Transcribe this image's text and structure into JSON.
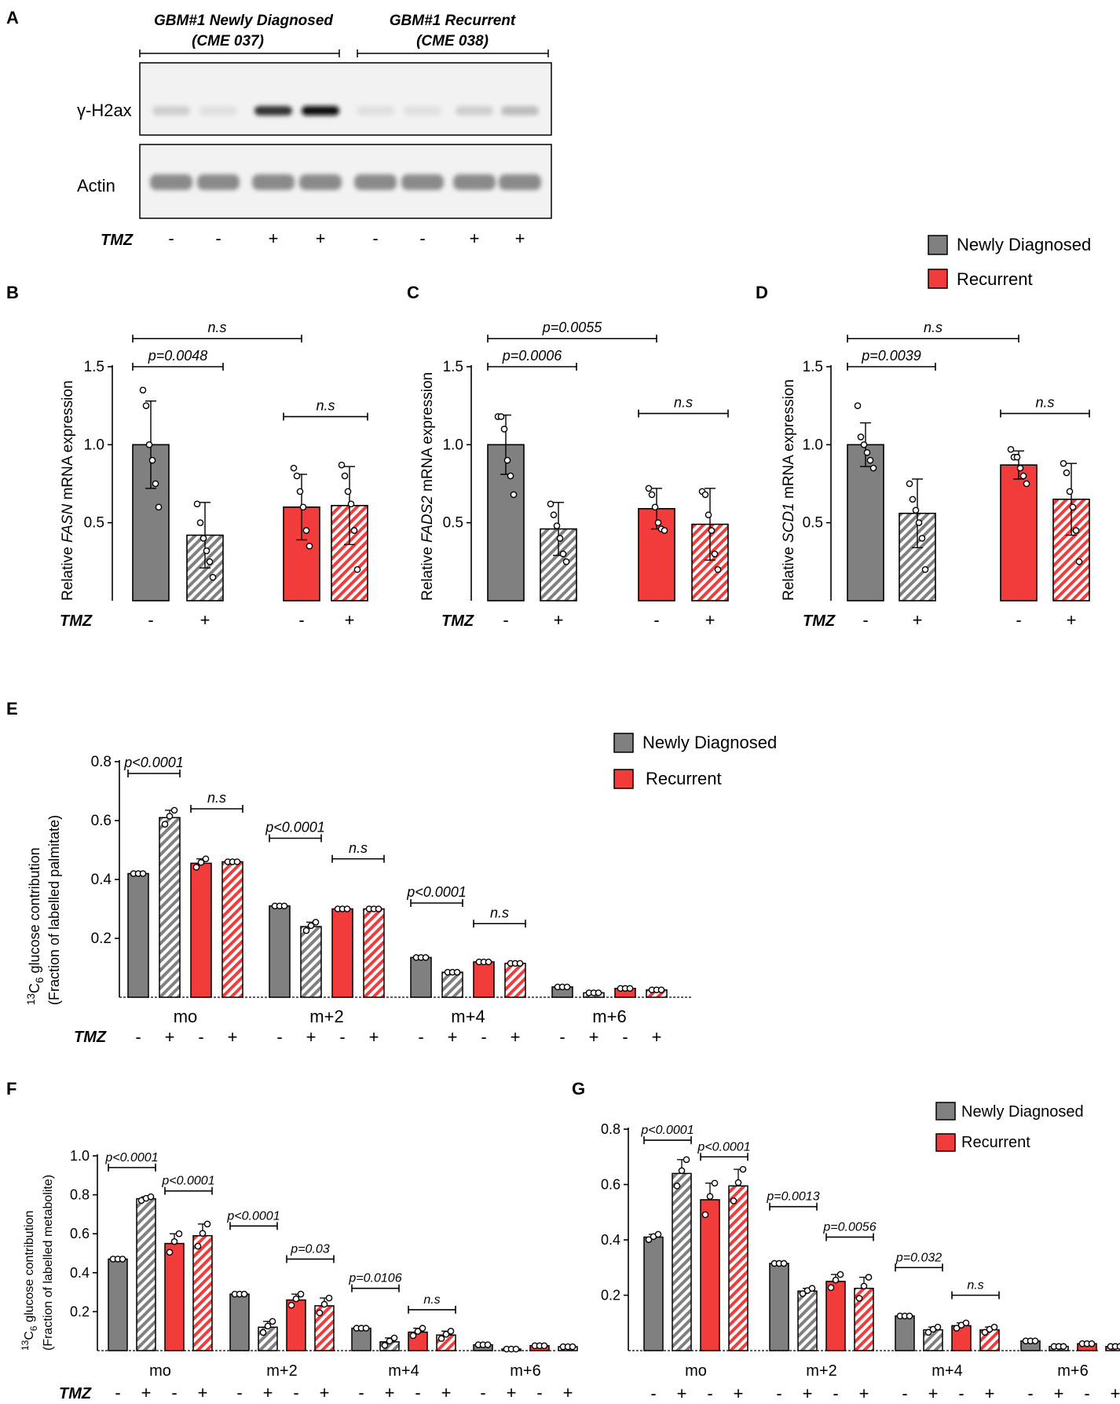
{
  "colors": {
    "newly": "#808080",
    "recurrent": "#f23c3c",
    "axis": "#000000",
    "blot_bg": "#f0f0f0"
  },
  "panel_a": {
    "letter": "A",
    "group1_line1": "GBM#1 Newly Diagnosed",
    "group1_line2": "(CME 037)",
    "group2_line1": "GBM#1 Recurrent",
    "group2_line2": "(CME 038)",
    "row1_label": "γ-H2ax",
    "row2_label": "Actin",
    "tmz_label": "TMZ",
    "lanes": [
      "-",
      "-",
      "+",
      "+",
      "-",
      "-",
      "+",
      "+"
    ],
    "h2ax_intensity": [
      0.12,
      0.05,
      0.8,
      0.95,
      0.05,
      0.05,
      0.12,
      0.2
    ]
  },
  "legend_top": {
    "newly": "Newly Diagnosed",
    "recurrent": "Recurrent"
  },
  "legend_e": {
    "newly": "Newly Diagnosed",
    "recurrent": "Recurrent"
  },
  "legend_g": {
    "newly": "Newly Diagnosed",
    "recurrent": "Recurrent"
  },
  "chart_data": [
    {
      "id": "B",
      "letter": "B",
      "type": "bar",
      "ylabel_prefix": "Relative ",
      "ylabel_gene": "FASN",
      "ylabel_suffix": " mRNA expression",
      "ylim": [
        0,
        1.5
      ],
      "yticks": [
        "0.5",
        "1.0",
        "1.5"
      ],
      "tmz_label": "TMZ",
      "xlabels": [
        "-",
        "+",
        "-",
        "+"
      ],
      "bars": [
        {
          "group": "Newly Diagnosed",
          "tmz": "-",
          "value": 1.0,
          "sd": 0.28,
          "points": [
            1.35,
            1.25,
            1.0,
            0.9,
            0.75,
            0.6
          ]
        },
        {
          "group": "Newly Diagnosed",
          "tmz": "+",
          "value": 0.42,
          "sd": 0.21,
          "points": [
            0.62,
            0.5,
            0.4,
            0.32,
            0.25,
            0.15
          ]
        },
        {
          "group": "Recurrent",
          "tmz": "-",
          "value": 0.6,
          "sd": 0.21,
          "points": [
            0.85,
            0.8,
            0.7,
            0.6,
            0.45,
            0.35
          ]
        },
        {
          "group": "Recurrent",
          "tmz": "+",
          "value": 0.61,
          "sd": 0.25,
          "points": [
            0.87,
            0.8,
            0.7,
            0.62,
            0.45,
            0.2
          ]
        }
      ],
      "comparisons": [
        {
          "from": 0,
          "to": 1,
          "label": "p=0.0048",
          "y": 1.5
        },
        {
          "from": 0,
          "to": 2,
          "label": "n.s",
          "y": 1.68
        },
        {
          "from": 2,
          "to": 3,
          "label": "n.s",
          "y": 1.18
        }
      ]
    },
    {
      "id": "C",
      "letter": "C",
      "type": "bar",
      "ylabel_prefix": "Relative ",
      "ylabel_gene": "FADS2",
      "ylabel_suffix": " mRNA expression",
      "ylim": [
        0,
        1.5
      ],
      "yticks": [
        "0.5",
        "1.0",
        "1.5"
      ],
      "tmz_label": "TMZ",
      "xlabels": [
        "-",
        "+",
        "-",
        "+"
      ],
      "bars": [
        {
          "group": "Newly Diagnosed",
          "tmz": "-",
          "value": 1.0,
          "sd": 0.19,
          "points": [
            1.18,
            1.18,
            1.1,
            0.9,
            0.8,
            0.68
          ]
        },
        {
          "group": "Newly Diagnosed",
          "tmz": "+",
          "value": 0.46,
          "sd": 0.17,
          "points": [
            0.62,
            0.55,
            0.48,
            0.4,
            0.3,
            0.25
          ]
        },
        {
          "group": "Recurrent",
          "tmz": "-",
          "value": 0.59,
          "sd": 0.13,
          "points": [
            0.72,
            0.68,
            0.6,
            0.5,
            0.46,
            0.45
          ]
        },
        {
          "group": "Recurrent",
          "tmz": "+",
          "value": 0.49,
          "sd": 0.23,
          "points": [
            0.7,
            0.68,
            0.55,
            0.45,
            0.3,
            0.2
          ]
        }
      ],
      "comparisons": [
        {
          "from": 0,
          "to": 1,
          "label": "p=0.0006",
          "y": 1.5
        },
        {
          "from": 0,
          "to": 2,
          "label": "p=0.0055",
          "y": 1.68
        },
        {
          "from": 2,
          "to": 3,
          "label": "n.s",
          "y": 1.2
        }
      ]
    },
    {
      "id": "D",
      "letter": "D",
      "type": "bar",
      "ylabel_prefix": "Relative ",
      "ylabel_gene": "SCD1",
      "ylabel_suffix": " mRNA expression",
      "ylim": [
        0,
        1.5
      ],
      "yticks": [
        "0.5",
        "1.0",
        "1.5"
      ],
      "tmz_label": "TMZ",
      "xlabels": [
        "-",
        "+",
        "-",
        "+"
      ],
      "bars": [
        {
          "group": "Newly Diagnosed",
          "tmz": "-",
          "value": 1.0,
          "sd": 0.14,
          "points": [
            1.25,
            1.05,
            1.0,
            0.95,
            0.9,
            0.85
          ]
        },
        {
          "group": "Newly Diagnosed",
          "tmz": "+",
          "value": 0.56,
          "sd": 0.22,
          "points": [
            0.75,
            0.65,
            0.58,
            0.5,
            0.4,
            0.2
          ]
        },
        {
          "group": "Recurrent",
          "tmz": "-",
          "value": 0.87,
          "sd": 0.09,
          "points": [
            0.97,
            0.92,
            0.92,
            0.85,
            0.8,
            0.75
          ]
        },
        {
          "group": "Recurrent",
          "tmz": "+",
          "value": 0.65,
          "sd": 0.23,
          "points": [
            0.88,
            0.82,
            0.7,
            0.6,
            0.45,
            0.25
          ]
        }
      ],
      "comparisons": [
        {
          "from": 0,
          "to": 1,
          "label": "p=0.0039",
          "y": 1.5
        },
        {
          "from": 0,
          "to": 2,
          "label": "n.s",
          "y": 1.68
        },
        {
          "from": 2,
          "to": 3,
          "label": "n.s",
          "y": 1.2
        }
      ]
    },
    {
      "id": "E",
      "letter": "E",
      "type": "bar",
      "ylabel_line1": "13C6 glucose contribution",
      "ylabel_line2": "(Fraction of  labelled palmitate)",
      "ylim": [
        0,
        0.8
      ],
      "yticks": [
        "0.2",
        "0.4",
        "0.6",
        "0.8"
      ],
      "tmz_label": "TMZ",
      "categories": [
        "mo",
        "m+2",
        "m+4",
        "m+6"
      ],
      "tmz_signs": [
        "-",
        "+",
        "-",
        "+"
      ],
      "values": [
        [
          0.42,
          0.61,
          0.455,
          0.46
        ],
        [
          0.31,
          0.24,
          0.3,
          0.3
        ],
        [
          0.135,
          0.085,
          0.12,
          0.115
        ],
        [
          0.035,
          0.015,
          0.03,
          0.025
        ]
      ],
      "errors": [
        [
          0.0,
          0.025,
          0.015,
          0.0
        ],
        [
          0.0,
          0.015,
          0.0,
          0.0
        ],
        [
          0.0,
          0.0,
          0.0,
          0.0
        ],
        [
          0.0,
          0.0,
          0.0,
          0.0
        ]
      ],
      "comparisons": [
        {
          "category": 0,
          "from": 0,
          "to": 1,
          "label": "p<0.0001",
          "y": 0.76
        },
        {
          "category": 0,
          "from": 2,
          "to": 3,
          "label": "n.s",
          "y": 0.64
        },
        {
          "category": 1,
          "from": 0,
          "to": 1,
          "label": "p<0.0001",
          "y": 0.54
        },
        {
          "category": 1,
          "from": 2,
          "to": 3,
          "label": "n.s",
          "y": 0.47
        },
        {
          "category": 2,
          "from": 0,
          "to": 1,
          "label": "p<0.0001",
          "y": 0.32
        },
        {
          "category": 2,
          "from": 2,
          "to": 3,
          "label": "n.s",
          "y": 0.25
        }
      ]
    },
    {
      "id": "F",
      "letter": "F",
      "type": "bar",
      "ylabel_line1": "13C6 glucose contribution",
      "ylabel_line2": "(Fraction of  labelled metabolite)",
      "ylim": [
        0,
        1.0
      ],
      "yticks": [
        "0.2",
        "0.4",
        "0.6",
        "0.8",
        "1.0"
      ],
      "tmz_label": "TMZ",
      "categories": [
        "mo",
        "m+2",
        "m+4",
        "m+6"
      ],
      "tmz_signs": [
        "-",
        "+",
        "-",
        "+"
      ],
      "values": [
        [
          0.47,
          0.78,
          0.55,
          0.59
        ],
        [
          0.29,
          0.12,
          0.26,
          0.23
        ],
        [
          0.115,
          0.045,
          0.095,
          0.08
        ],
        [
          0.03,
          0.008,
          0.025,
          0.02
        ]
      ],
      "errors": [
        [
          0.0,
          0.01,
          0.05,
          0.06
        ],
        [
          0.0,
          0.03,
          0.03,
          0.04
        ],
        [
          0.0,
          0.02,
          0.02,
          0.02
        ],
        [
          0.0,
          0.0,
          0.0,
          0.0
        ]
      ],
      "comparisons": [
        {
          "category": 0,
          "from": 0,
          "to": 1,
          "label": "p<0.0001",
          "y": 0.94
        },
        {
          "category": 0,
          "from": 2,
          "to": 3,
          "label": "p<0.0001",
          "y": 0.82
        },
        {
          "category": 1,
          "from": 0,
          "to": 1,
          "label": "p<0.0001",
          "y": 0.64
        },
        {
          "category": 1,
          "from": 2,
          "to": 3,
          "label": "p=0.03",
          "y": 0.47
        },
        {
          "category": 2,
          "from": 0,
          "to": 1,
          "label": "p=0.0106",
          "y": 0.32
        },
        {
          "category": 2,
          "from": 2,
          "to": 3,
          "label": "n.s",
          "y": 0.21
        }
      ]
    },
    {
      "id": "G",
      "letter": "G",
      "type": "bar",
      "ylim": [
        0,
        0.8
      ],
      "yticks": [
        "0.2",
        "0.4",
        "0.6",
        "0.8"
      ],
      "categories": [
        "mo",
        "m+2",
        "m+4",
        "m+6"
      ],
      "tmz_signs": [
        "-",
        "+",
        "-",
        "+"
      ],
      "values": [
        [
          0.41,
          0.64,
          0.545,
          0.595
        ],
        [
          0.315,
          0.215,
          0.25,
          0.225
        ],
        [
          0.125,
          0.075,
          0.09,
          0.075
        ],
        [
          0.035,
          0.015,
          0.025,
          0.015
        ]
      ],
      "errors": [
        [
          0.01,
          0.05,
          0.06,
          0.06
        ],
        [
          0.0,
          0.01,
          0.025,
          0.04
        ],
        [
          0.0,
          0.01,
          0.01,
          0.01
        ],
        [
          0.0,
          0.0,
          0.0,
          0.0
        ]
      ],
      "comparisons": [
        {
          "category": 0,
          "from": 0,
          "to": 1,
          "label": "p<0.0001",
          "y": 0.76
        },
        {
          "category": 0,
          "from": 2,
          "to": 3,
          "label": "p<0.0001",
          "y": 0.7
        },
        {
          "category": 1,
          "from": 0,
          "to": 1,
          "label": "p=0.0013",
          "y": 0.52
        },
        {
          "category": 1,
          "from": 2,
          "to": 3,
          "label": "p=0.0056",
          "y": 0.41
        },
        {
          "category": 2,
          "from": 0,
          "to": 1,
          "label": "p=0.032",
          "y": 0.3
        },
        {
          "category": 2,
          "from": 2,
          "to": 3,
          "label": "n.s",
          "y": 0.2
        }
      ]
    }
  ]
}
